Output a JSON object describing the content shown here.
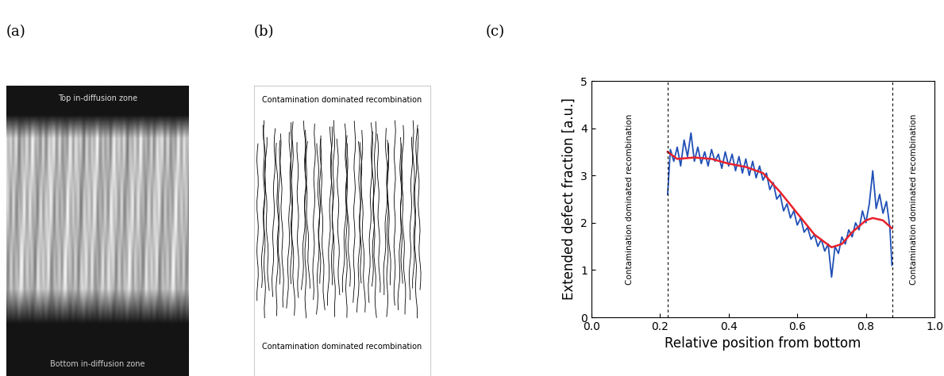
{
  "panel_labels": [
    "(a)",
    "(b)",
    "(c)"
  ],
  "image_a": {
    "top_text": "Top in-diffusion zone",
    "bottom_text": "Bottom in-diffusion zone"
  },
  "image_b": {
    "top_text": "Contamination dominated recombination",
    "bottom_text": "Contamination dominated recombination"
  },
  "chart_data": {
    "type": "line",
    "x_label": "Relative position from bottom",
    "y_label": "Extended defect fraction [a.u.]",
    "xlim": [
      0.0,
      1.0
    ],
    "xticks": [
      {
        "value": 0.0,
        "label": "0.0"
      },
      0.2,
      0.4,
      0.6,
      0.8,
      {
        "value": 1.0,
        "label": "1.0"
      }
    ],
    "ylim": [
      0,
      5
    ],
    "yticks": [
      0,
      1,
      2,
      3,
      4,
      5
    ],
    "grid": false,
    "vlines": [
      0.222,
      0.877
    ],
    "annotations": [
      {
        "text": "Contamination dominated recombination",
        "x": 0.11,
        "y": 2.5
      },
      {
        "text": "Contamination dominated recombination",
        "x": 0.94,
        "y": 2.5
      }
    ],
    "series": [
      {
        "color": "#1f4fb5",
        "x": [
          0.222,
          0.23,
          0.24,
          0.25,
          0.26,
          0.27,
          0.28,
          0.29,
          0.3,
          0.31,
          0.32,
          0.33,
          0.34,
          0.35,
          0.36,
          0.37,
          0.38,
          0.39,
          0.4,
          0.41,
          0.42,
          0.43,
          0.44,
          0.45,
          0.46,
          0.47,
          0.48,
          0.49,
          0.5,
          0.51,
          0.52,
          0.53,
          0.54,
          0.55,
          0.56,
          0.57,
          0.58,
          0.59,
          0.6,
          0.61,
          0.62,
          0.63,
          0.64,
          0.65,
          0.66,
          0.67,
          0.68,
          0.69,
          0.7,
          0.71,
          0.72,
          0.73,
          0.74,
          0.75,
          0.76,
          0.77,
          0.78,
          0.79,
          0.8,
          0.81,
          0.82,
          0.83,
          0.84,
          0.85,
          0.86,
          0.87,
          0.876
        ],
        "values": [
          2.6,
          3.55,
          3.3,
          3.6,
          3.2,
          3.75,
          3.4,
          3.9,
          3.3,
          3.6,
          3.25,
          3.5,
          3.2,
          3.55,
          3.3,
          3.45,
          3.15,
          3.5,
          3.2,
          3.45,
          3.1,
          3.4,
          3.05,
          3.35,
          3.0,
          3.3,
          2.95,
          3.2,
          2.9,
          3.05,
          2.7,
          2.85,
          2.5,
          2.6,
          2.25,
          2.4,
          2.1,
          2.25,
          1.95,
          2.1,
          1.8,
          1.9,
          1.65,
          1.75,
          1.5,
          1.65,
          1.4,
          1.55,
          0.85,
          1.5,
          1.35,
          1.7,
          1.55,
          1.85,
          1.7,
          2.0,
          1.85,
          2.25,
          2.0,
          2.4,
          3.1,
          2.3,
          2.6,
          2.2,
          2.45,
          1.9,
          1.1
        ]
      },
      {
        "color": "#e8212b",
        "x": [
          0.222,
          0.25,
          0.3,
          0.35,
          0.4,
          0.45,
          0.5,
          0.55,
          0.6,
          0.65,
          0.7,
          0.73,
          0.76,
          0.8,
          0.82,
          0.85,
          0.876
        ],
        "values": [
          3.5,
          3.35,
          3.38,
          3.35,
          3.25,
          3.18,
          3.05,
          2.65,
          2.2,
          1.75,
          1.48,
          1.55,
          1.8,
          2.05,
          2.1,
          2.05,
          1.88
        ]
      }
    ]
  }
}
